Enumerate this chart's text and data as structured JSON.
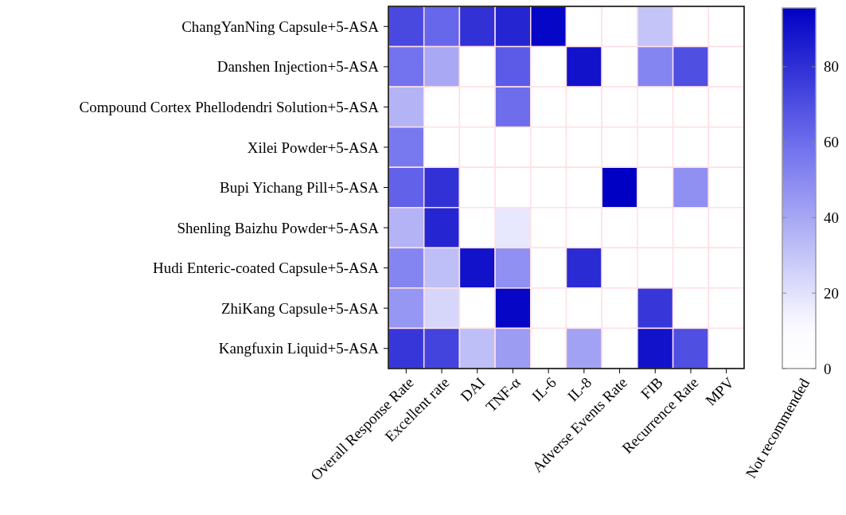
{
  "chart_data": {
    "type": "heatmap",
    "categories": [
      "Overall Response Rate",
      "Excellent rate",
      "DAI",
      "TNF-α",
      "IL-6",
      "IL-8",
      "Adverse Events Rate",
      "FIB",
      "Recurrence Rate",
      "MPV"
    ],
    "y_categories": [
      "ChangYanNing Capsule+5-ASA",
      "Danshen Injection+5-ASA",
      "Compound Cortex Phellodendri Solution+5-ASA",
      "Xilei Powder+5-ASA",
      "Bupi Yichang Pill+5-ASA",
      "Shenling Baizhu Powder+5-ASA",
      "Hudi Enteric-coated Capsule+5-ASA",
      "ZhiKang Capsule+5-ASA",
      "Kangfuxin Liquid+5-ASA"
    ],
    "cells": [
      [
        72,
        62,
        80,
        84,
        94,
        null,
        null,
        30,
        null,
        null
      ],
      [
        58,
        40,
        null,
        66,
        null,
        90,
        null,
        52,
        70,
        null
      ],
      [
        36,
        null,
        null,
        60,
        null,
        null,
        null,
        null,
        null,
        null
      ],
      [
        56,
        null,
        null,
        null,
        null,
        null,
        null,
        null,
        null,
        null
      ],
      [
        64,
        80,
        null,
        null,
        null,
        null,
        96,
        null,
        48,
        null
      ],
      [
        36,
        84,
        null,
        18,
        null,
        null,
        null,
        null,
        null,
        null
      ],
      [
        52,
        32,
        90,
        48,
        null,
        82,
        null,
        null,
        null,
        null
      ],
      [
        46,
        24,
        null,
        94,
        null,
        null,
        null,
        78,
        null,
        null
      ],
      [
        78,
        74,
        32,
        44,
        null,
        42,
        null,
        90,
        70,
        null
      ]
    ],
    "clim": [
      0,
      96
    ],
    "cticks": [
      0,
      20,
      40,
      60,
      80
    ],
    "clabel": "Not recommended"
  }
}
